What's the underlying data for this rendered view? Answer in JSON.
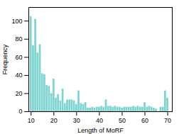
{
  "chart_data": {
    "type": "bar",
    "x": [
      10,
      11,
      12,
      13,
      14,
      15,
      16,
      17,
      18,
      19,
      20,
      21,
      22,
      23,
      24,
      25,
      26,
      27,
      28,
      29,
      30,
      31,
      32,
      33,
      34,
      35,
      36,
      37,
      38,
      39,
      40,
      41,
      42,
      43,
      44,
      45,
      46,
      47,
      48,
      49,
      50,
      51,
      52,
      53,
      54,
      55,
      56,
      57,
      58,
      59,
      60,
      61,
      62,
      63,
      64,
      65,
      66,
      67,
      68,
      69,
      70
    ],
    "values": [
      105,
      73,
      102,
      65,
      74,
      42,
      41,
      29,
      28,
      20,
      36,
      15,
      19,
      12,
      25,
      9,
      13,
      13,
      13,
      12,
      8,
      23,
      9,
      8,
      10,
      4,
      4,
      5,
      4,
      5,
      5,
      6,
      5,
      13,
      6,
      6,
      5,
      6,
      5,
      5,
      4,
      5,
      5,
      5,
      5,
      6,
      5,
      6,
      5,
      5,
      10,
      5,
      6,
      5,
      4,
      3,
      0,
      5,
      5,
      23,
      15
    ],
    "color": "#7dd4d0",
    "xlabel": "Length of MoRF",
    "ylabel": "Frequency",
    "xlim": [
      9,
      72
    ],
    "ylim": [
      0,
      115
    ],
    "xticks": [
      10,
      20,
      30,
      40,
      50,
      60,
      70
    ],
    "yticks": [
      0,
      20,
      40,
      60,
      80,
      100
    ],
    "grid": false
  }
}
